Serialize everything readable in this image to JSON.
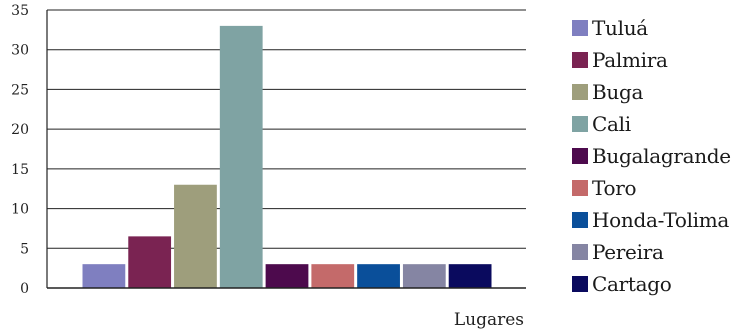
{
  "chart_data": {
    "type": "bar",
    "title": "",
    "xlabel": "Lugares",
    "ylabel": "",
    "ylim": [
      0,
      35
    ],
    "yticks": [
      0,
      5,
      10,
      15,
      20,
      25,
      30,
      35
    ],
    "grid": true,
    "legend_position": "right",
    "categories": [
      "Tuluá",
      "Palmira",
      "Buga",
      "Cali",
      "Bugalagrande",
      "Toro",
      "Honda-Tolima",
      "Pereira",
      "Cartago"
    ],
    "values": [
      3,
      6.5,
      13,
      33,
      3,
      3,
      3,
      3,
      3
    ],
    "colors": [
      "#7f7fc0",
      "#7a2352",
      "#9e9e7c",
      "#7fa3a3",
      "#4d0a4d",
      "#c46a6a",
      "#0a4f9a",
      "#8585a3",
      "#0a0a5e"
    ]
  }
}
